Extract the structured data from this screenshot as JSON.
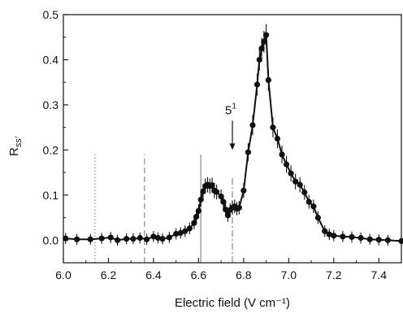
{
  "chart_data": {
    "type": "scatter",
    "xlabel": "Electric field (V cm⁻¹)",
    "ylabel_main": "R",
    "ylabel_sub": "ss′",
    "xlim": [
      6.0,
      7.5
    ],
    "ylim": [
      -0.05,
      0.5
    ],
    "xticks": [
      "6.0",
      "6.2",
      "6.4",
      "6.6",
      "6.8",
      "7.0",
      "7.2",
      "7.4"
    ],
    "yticks": [
      "0.0",
      "0.1",
      "0.2",
      "0.3",
      "0.4",
      "0.5"
    ],
    "grid": false,
    "annotation": {
      "text_main": "5",
      "text_sup": "1",
      "x": 6.75,
      "y_arrow_top": 0.265,
      "y_arrow_tip": 0.2
    },
    "reference_lines": [
      {
        "x": 6.14,
        "ymax": 0.19,
        "style": "dotted"
      },
      {
        "x": 6.36,
        "ymax": 0.19,
        "style": "dashed"
      },
      {
        "x": 6.61,
        "ymax": 0.19,
        "style": "solid"
      },
      {
        "x": 6.75,
        "ymax": 0.14,
        "style": "dashdot"
      }
    ],
    "series": [
      {
        "x": [
          6.01,
          6.06,
          6.12,
          6.17,
          6.21,
          6.24,
          6.28,
          6.31,
          6.34,
          6.37,
          6.4,
          6.42,
          6.44,
          6.47,
          6.5,
          6.52,
          6.54,
          6.56,
          6.58,
          6.59,
          6.6,
          6.61,
          6.62,
          6.63,
          6.64,
          6.65,
          6.66,
          6.67,
          6.68,
          6.7,
          6.71,
          6.72,
          6.73,
          6.74,
          6.75,
          6.76,
          6.77,
          6.78,
          6.8,
          6.82,
          6.84,
          6.86,
          6.87,
          6.88,
          6.89,
          6.9,
          6.91,
          6.93,
          6.95,
          6.97,
          6.99,
          7.01,
          7.03,
          7.05,
          7.07,
          7.09,
          7.11,
          7.13,
          7.16,
          7.18,
          7.2,
          7.24,
          7.28,
          7.32,
          7.36,
          7.4,
          7.44,
          7.5
        ],
        "y": [
          0.004,
          0.002,
          0.002,
          0.004,
          0.006,
          0.0,
          0.003,
          0.003,
          0.005,
          0.002,
          0.008,
          0.005,
          0.003,
          0.006,
          0.014,
          0.016,
          0.02,
          0.026,
          0.038,
          0.052,
          0.065,
          0.09,
          0.108,
          0.12,
          0.123,
          0.12,
          0.122,
          0.11,
          0.107,
          0.097,
          0.085,
          0.068,
          0.055,
          0.067,
          0.072,
          0.075,
          0.07,
          0.072,
          0.11,
          0.195,
          0.255,
          0.345,
          0.4,
          0.425,
          0.44,
          0.455,
          0.355,
          0.25,
          0.225,
          0.19,
          0.168,
          0.148,
          0.13,
          0.123,
          0.106,
          0.085,
          0.075,
          0.05,
          0.02,
          0.013,
          0.01,
          0.008,
          0.007,
          0.005,
          0.002,
          0.001,
          0.0,
          -0.002
        ]
      }
    ]
  }
}
